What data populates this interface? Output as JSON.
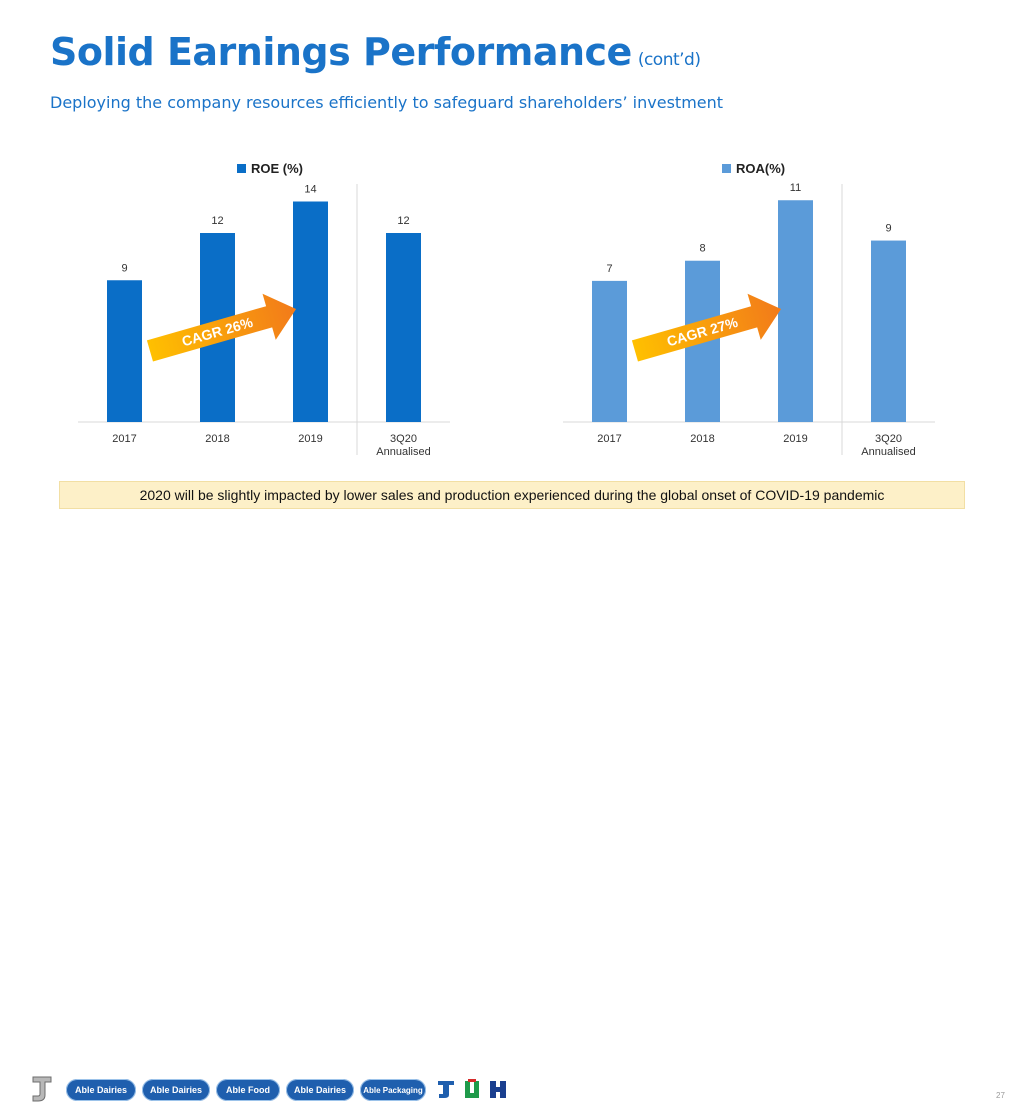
{
  "slide": {
    "title": "Solid Earnings Performance",
    "title_suffix": "(cont’d)",
    "subtitle": "Deploying the company resources efficiently to safeguard shareholders’ investment",
    "note": "2020 will be slightly impacted by lower sales and production experienced during the global onset of COVID-19 pandemic",
    "page_number": "27"
  },
  "footer": {
    "brands": [
      "Able Dairies",
      "Able Dairies",
      "Able Food",
      "Able Dairies",
      "Able Packaging"
    ]
  },
  "chart_data": [
    {
      "type": "bar",
      "legend": "ROE (%)",
      "legend_position": "top-center",
      "categories": [
        "2017",
        "2018",
        "2019",
        "3Q20 Annualised"
      ],
      "values": [
        9,
        12,
        14,
        12
      ],
      "color": "#0a6ec7",
      "ylim": [
        0,
        16
      ],
      "grid": false,
      "annotation": "CAGR 26%"
    },
    {
      "type": "bar",
      "legend": "ROA(%)",
      "legend_position": "top-center",
      "categories": [
        "2017",
        "2018",
        "2019",
        "3Q20 Annualised"
      ],
      "values": [
        7,
        8,
        11,
        9
      ],
      "color": "#5b9bd9",
      "ylim": [
        0,
        12.5
      ],
      "grid": false,
      "annotation": "CAGR 27%"
    }
  ]
}
